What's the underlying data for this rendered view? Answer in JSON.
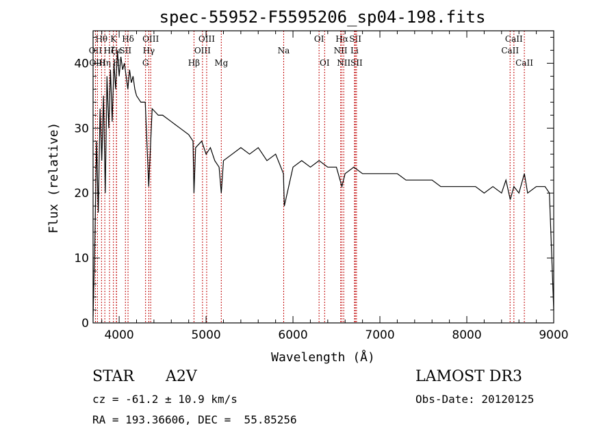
{
  "chart_data": {
    "type": "line",
    "title": "spec-55952-F5595206_sp04-198.fits",
    "xlabel": "Wavelength (Å)",
    "ylabel": "Flux (relative)",
    "xlim": [
      3700,
      9000
    ],
    "ylim": [
      0,
      45
    ],
    "xticks": [
      4000,
      5000,
      6000,
      7000,
      8000,
      9000
    ],
    "yticks": [
      0,
      10,
      20,
      30,
      40
    ],
    "series": [
      {
        "name": "flux",
        "x": [
          3700,
          3720,
          3740,
          3760,
          3780,
          3800,
          3820,
          3840,
          3860,
          3880,
          3900,
          3920,
          3940,
          3960,
          3980,
          4000,
          4020,
          4040,
          4060,
          4080,
          4100,
          4120,
          4140,
          4160,
          4180,
          4200,
          4250,
          4300,
          4340,
          4380,
          4450,
          4500,
          4600,
          4700,
          4800,
          4850,
          4861,
          4880,
          4950,
          5000,
          5050,
          5100,
          5150,
          5175,
          5200,
          5300,
          5400,
          5500,
          5600,
          5700,
          5800,
          5890,
          5900,
          6000,
          6100,
          6200,
          6300,
          6400,
          6500,
          6563,
          6600,
          6700,
          6800,
          6900,
          7000,
          7100,
          7200,
          7300,
          7400,
          7500,
          7600,
          7700,
          7800,
          7900,
          8000,
          8100,
          8200,
          8300,
          8400,
          8450,
          8500,
          8542,
          8600,
          8662,
          8700,
          8800,
          8900,
          8950,
          9000
        ],
        "y": [
          1,
          12,
          28,
          17,
          33,
          25,
          35,
          20,
          38,
          30,
          39,
          31,
          40,
          36,
          42,
          38,
          41,
          39,
          40,
          38,
          36,
          39,
          37,
          38,
          36,
          35,
          34,
          34,
          21,
          33,
          32,
          32,
          31,
          30,
          29,
          28,
          20,
          27,
          28,
          26,
          27,
          25,
          24,
          20,
          25,
          26,
          27,
          26,
          27,
          25,
          26,
          23,
          18,
          24,
          25,
          24,
          25,
          24,
          24,
          21,
          23,
          24,
          23,
          23,
          23,
          23,
          23,
          22,
          22,
          22,
          22,
          21,
          21,
          21,
          21,
          21,
          20,
          21,
          20,
          22,
          19,
          21,
          20,
          23,
          20,
          21,
          21,
          20,
          2
        ]
      }
    ],
    "line_markers": [
      {
        "label": "Hθ",
        "wave": 3797,
        "row": 0
      },
      {
        "label": "OII",
        "wave": 3727,
        "row": 1
      },
      {
        "label": "OIII",
        "wave": 3750,
        "row": 2
      },
      {
        "label": "K",
        "wave": 3934,
        "row": 0
      },
      {
        "label": "Hε",
        "wave": 3970,
        "row": 1
      },
      {
        "label": "Hη",
        "wave": 3835,
        "row": 2
      },
      {
        "label": "Hζ",
        "wave": 3889,
        "row": 1
      },
      {
        "label": "H",
        "wave": 3968,
        "row": 2
      },
      {
        "label": "Hδ",
        "wave": 4102,
        "row": 0
      },
      {
        "label": "SII",
        "wave": 4072,
        "row": 1
      },
      {
        "label": "OIII",
        "wave": 4363,
        "row": 0
      },
      {
        "label": "Hγ",
        "wave": 4341,
        "row": 1
      },
      {
        "label": "G",
        "wave": 4304,
        "row": 2
      },
      {
        "label": "Hβ",
        "wave": 4861,
        "row": 2
      },
      {
        "label": "OIII",
        "wave": 4959,
        "row": 1
      },
      {
        "label": "OIII",
        "wave": 5007,
        "row": 0
      },
      {
        "label": "Mg",
        "wave": 5175,
        "row": 2
      },
      {
        "label": "Na",
        "wave": 5893,
        "row": 1
      },
      {
        "label": "OI",
        "wave": 6300,
        "row": 0
      },
      {
        "label": "OI",
        "wave": 6364,
        "row": 2
      },
      {
        "label": "Hα",
        "wave": 6563,
        "row": 0
      },
      {
        "label": "NII",
        "wave": 6548,
        "row": 1
      },
      {
        "label": "NII",
        "wave": 6584,
        "row": 2
      },
      {
        "label": "SII",
        "wave": 6717,
        "row": 0
      },
      {
        "label": "Li",
        "wave": 6708,
        "row": 1
      },
      {
        "label": "SII",
        "wave": 6731,
        "row": 2
      },
      {
        "label": "CaII",
        "wave": 8542,
        "row": 0
      },
      {
        "label": "CaII",
        "wave": 8498,
        "row": 1
      },
      {
        "label": "CaII",
        "wave": 8662,
        "row": 2
      }
    ]
  },
  "info": {
    "object_class": "STAR",
    "subclass": "A2V",
    "survey": "LAMOST DR3",
    "cz": "cz = -61.2 ± 10.9 km/s",
    "obs_date": "Obs-Date: 20120125",
    "coords": "RA = 193.36606, DEC =  55.85256"
  },
  "colors": {
    "marker": "#c00000",
    "trace": "#000000"
  }
}
